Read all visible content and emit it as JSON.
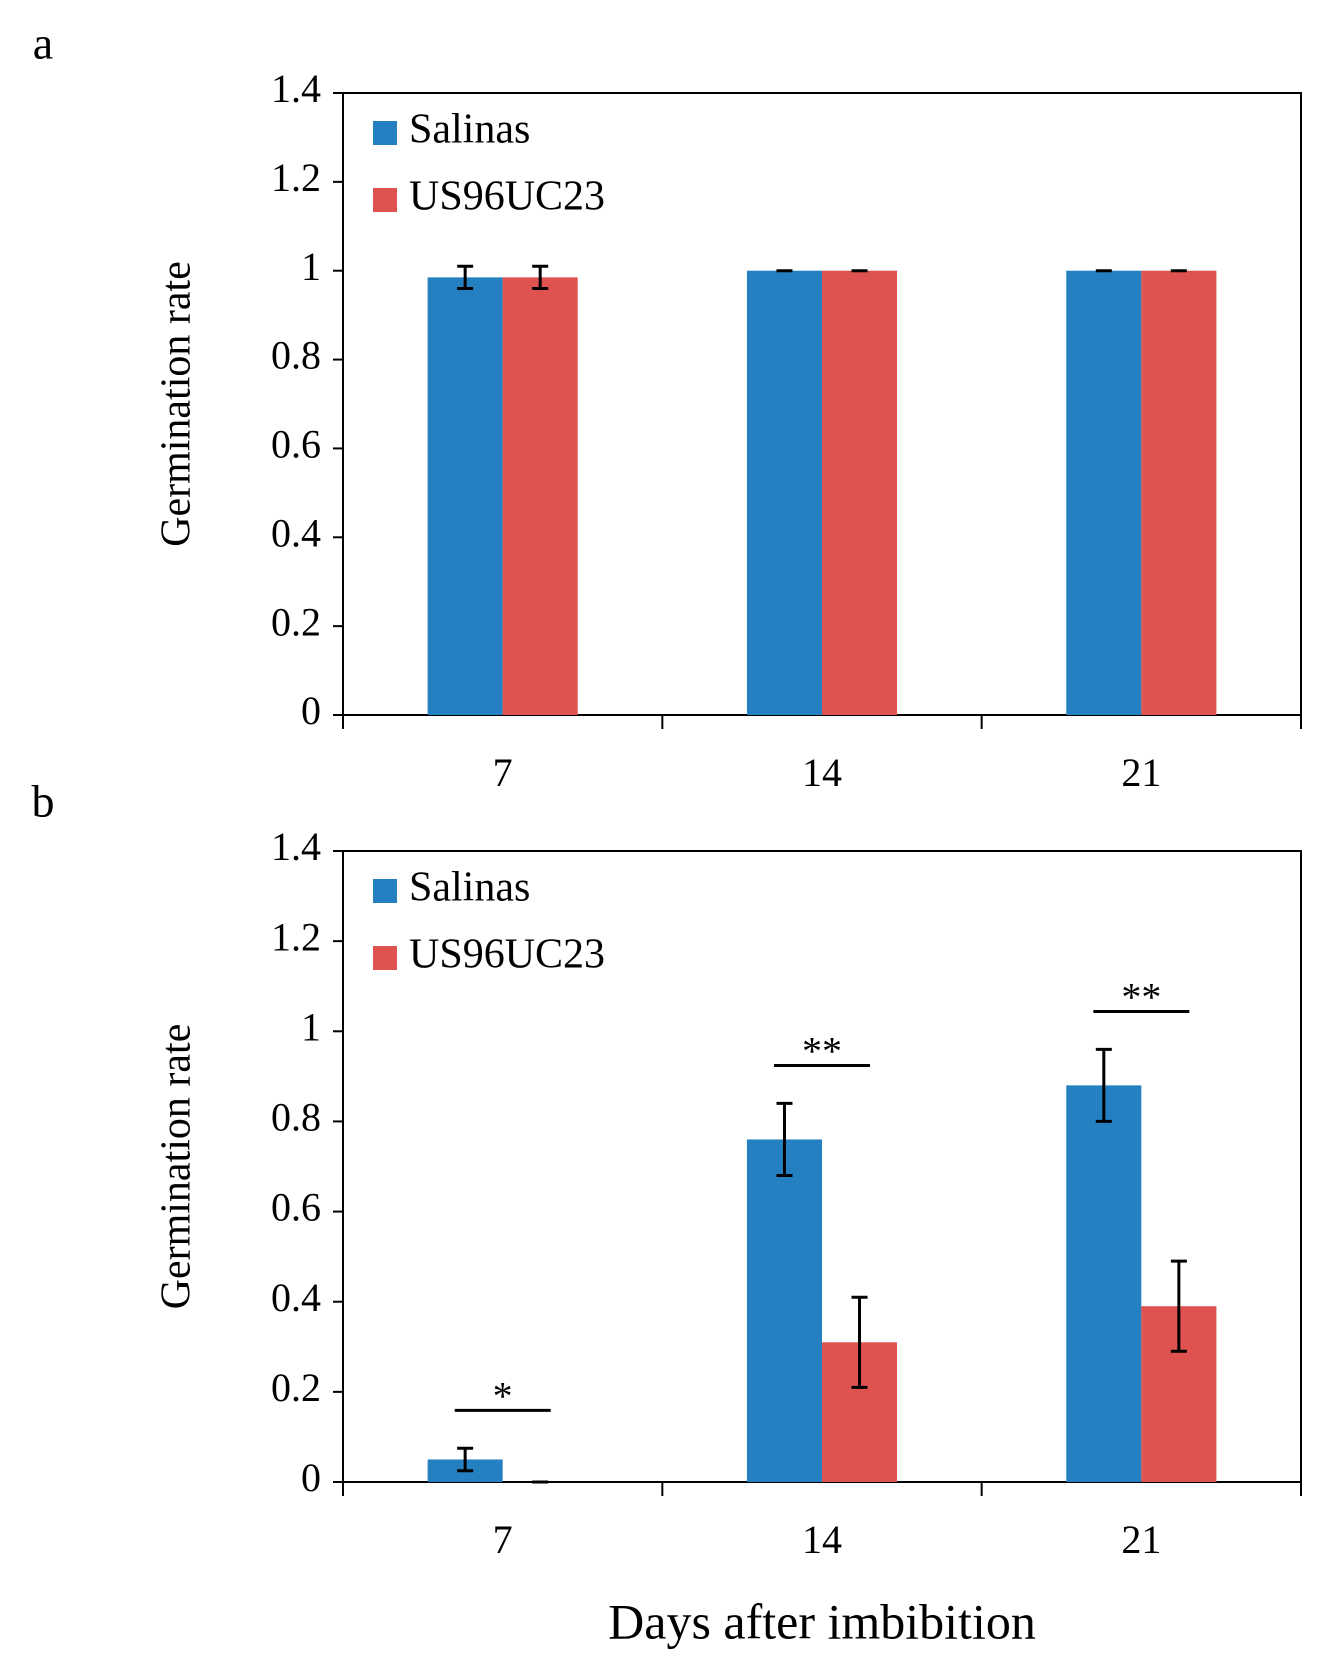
{
  "chart_data": [
    {
      "type": "bar",
      "panel": "a",
      "ylabel": "Germination rate",
      "categories": [
        "7",
        "14",
        "21"
      ],
      "series": [
        {
          "name": "Salinas",
          "color": "#2580c1",
          "values": [
            0.985,
            1,
            1
          ],
          "errors": [
            0.025,
            0,
            0
          ]
        },
        {
          "name": "US96UC23",
          "color": "#de524f",
          "values": [
            0.985,
            1,
            1
          ],
          "errors": [
            0.025,
            0,
            0
          ]
        }
      ],
      "ylim": [
        0,
        1.4
      ],
      "yticks": [
        0,
        0.2,
        0.4,
        0.6,
        0.8,
        1,
        1.2,
        1.4
      ],
      "legend": "upper left"
    },
    {
      "type": "bar",
      "panel": "b",
      "ylabel": "Germination rate",
      "xlabel": "Days after imbibition",
      "categories": [
        "7",
        "14",
        "21"
      ],
      "series": [
        {
          "name": "Salinas",
          "color": "#2580c1",
          "values": [
            0.05,
            0.76,
            0.88
          ],
          "errors": [
            0.025,
            0.08,
            0.08
          ]
        },
        {
          "name": "US96UC23",
          "color": "#de524f",
          "values": [
            0,
            0.31,
            0.39
          ],
          "errors": [
            0,
            0.1,
            0.1
          ]
        }
      ],
      "annotations": [
        "*",
        "**",
        "**"
      ],
      "ylim": [
        0,
        1.4
      ],
      "yticks": [
        0,
        0.2,
        0.4,
        0.6,
        0.8,
        1,
        1.2,
        1.4
      ],
      "legend": "upper left"
    }
  ]
}
